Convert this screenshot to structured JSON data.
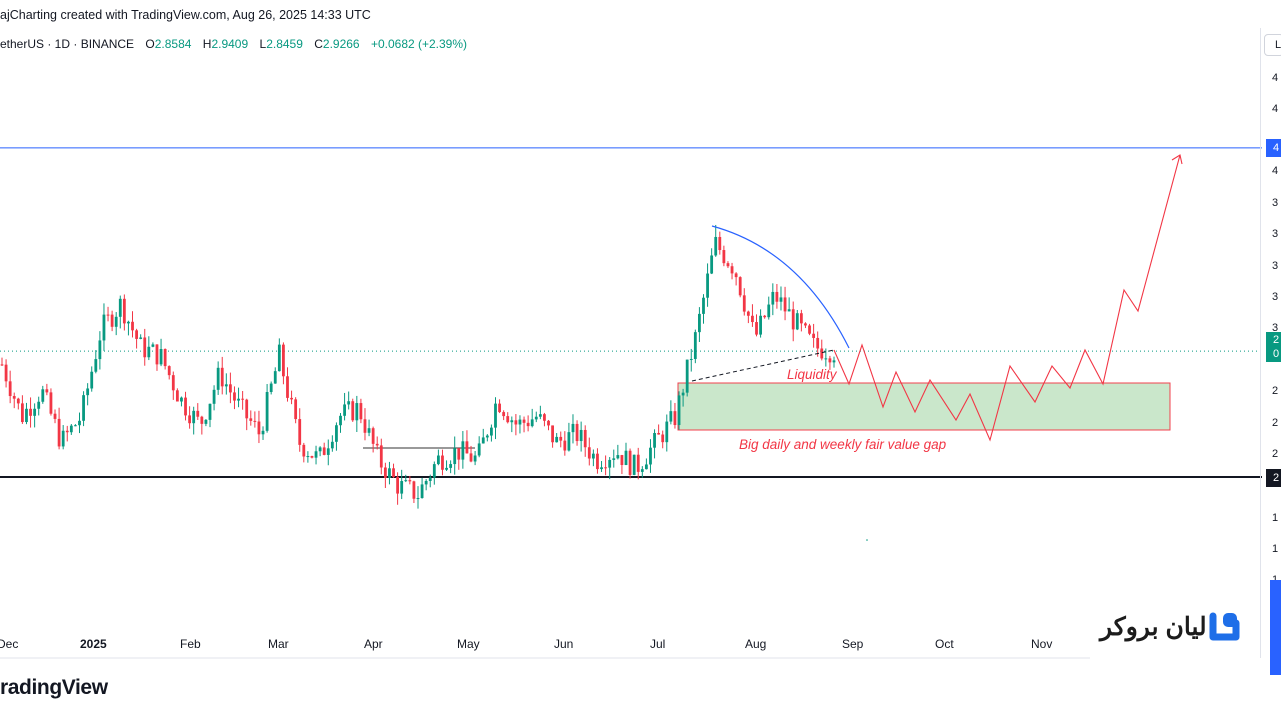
{
  "header": {
    "credit": "ajCharting created with TradingView.com, Aug 26, 2025 14:33 UTC",
    "symbol": "etherUS · 1D · BINANCE",
    "open_label": "O",
    "open": "2.8584",
    "high_label": "H",
    "high": "2.9409",
    "low_label": "L",
    "low": "2.8459",
    "close_label": "C",
    "close": "2.9266",
    "change": "+0.0682 (+2.39%)"
  },
  "footer": {
    "brand": "radingView"
  },
  "logo": {
    "text": "لیان بروکر",
    "icon": "lian-broker-logo-icon"
  },
  "yaxis": {
    "toggle": "L",
    "ticks": [
      "4",
      "4",
      "4",
      "3",
      "3",
      "3",
      "3",
      "3",
      "2",
      "2",
      "2",
      "1",
      "1",
      "1"
    ],
    "tags": {
      "resistance": "4",
      "price_top": "2",
      "price_bottom": "0",
      "support": "2"
    }
  },
  "colors": {
    "up": "#089981",
    "down": "#f23645",
    "resistance": "#2962ff",
    "support": "#131722",
    "annotation": "#f23645",
    "fvg_fill": "#c8e6c9",
    "curve": "#2962ff"
  },
  "chart_data": {
    "type": "candlestick",
    "title": "",
    "xlabel": "",
    "ylabel": "",
    "x_tick_labels": [
      "Dec",
      "2025",
      "Feb",
      "Mar",
      "Apr",
      "May",
      "Jun",
      "Jul",
      "Aug",
      "Sep",
      "Oct",
      "Nov"
    ],
    "levels": {
      "resistance": 4.1,
      "support": 2.2,
      "last_price": 2.9266
    },
    "annotations": {
      "liquidity": "Liquidity",
      "fvg": "Big daily and weekly fair value gap"
    },
    "fair_value_gap": {
      "from": "Jul",
      "to": "Nov",
      "low": 2.4,
      "high": 2.65
    },
    "projected_path": "zigzag through fair value gap, then breakout to 4.1",
    "price_path": [
      [
        "Dec",
        2.85
      ],
      [
        "Dec",
        2.55
      ],
      [
        "Dec",
        2.7
      ],
      [
        "2025",
        2.4
      ],
      [
        "2025",
        2.55
      ],
      [
        "Jan",
        3.05
      ],
      [
        "Jan",
        3.2
      ],
      [
        "Jan",
        2.95
      ],
      [
        "Jan",
        2.9
      ],
      [
        "Feb",
        2.65
      ],
      [
        "Feb",
        2.5
      ],
      [
        "Feb",
        2.8
      ],
      [
        "Feb",
        2.6
      ],
      [
        "Mar",
        2.45
      ],
      [
        "Mar",
        2.9
      ],
      [
        "Mar",
        2.4
      ],
      [
        "Mar",
        2.3
      ],
      [
        "Mar",
        2.55
      ],
      [
        "Mar",
        2.6
      ],
      [
        "Apr",
        2.3
      ],
      [
        "Apr",
        2.15
      ],
      [
        "Apr",
        2.1
      ],
      [
        "Apr",
        2.3
      ],
      [
        "Apr",
        2.35
      ],
      [
        "May",
        2.3
      ],
      [
        "May",
        2.65
      ],
      [
        "May",
        2.5
      ],
      [
        "May",
        2.55
      ],
      [
        "Jun",
        2.4
      ],
      [
        "Jun",
        2.45
      ],
      [
        "Jun",
        2.3
      ],
      [
        "Jun",
        2.35
      ],
      [
        "Jun",
        2.25
      ],
      [
        "Jul",
        2.4
      ],
      [
        "Jul",
        2.55
      ],
      [
        "Jul",
        3.0
      ],
      [
        "Jul",
        3.55
      ],
      [
        "Jul",
        3.4
      ],
      [
        "Aug",
        3.0
      ],
      [
        "Aug",
        3.25
      ],
      [
        "Aug",
        3.1
      ],
      [
        "Aug",
        2.95
      ],
      [
        "Aug",
        2.9266
      ]
    ]
  }
}
